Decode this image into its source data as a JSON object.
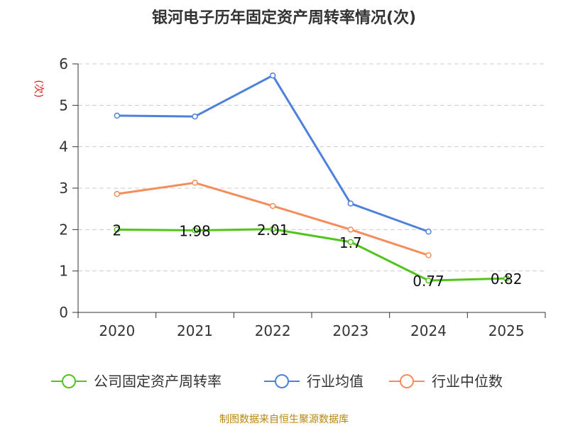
{
  "chart_data": {
    "type": "line",
    "title": "银河电子历年固定资产周转率情况(次)",
    "ylabel": "(次)",
    "xlabel": "",
    "categories": [
      "2020",
      "2021",
      "2022",
      "2023",
      "2024",
      "2025"
    ],
    "ylim": [
      0,
      6
    ],
    "yticks": [
      "0",
      "1",
      "2",
      "3",
      "4",
      "5",
      "6"
    ],
    "grid": true,
    "legend_position": "bottom",
    "series": [
      {
        "name": "公司固定资产周转率",
        "color": "#52c41a",
        "values": [
          2,
          1.98,
          2.01,
          1.7,
          0.77,
          0.82
        ],
        "labels": [
          "2",
          "1.98",
          "2.01",
          "1.7",
          "0.77",
          "0.82"
        ]
      },
      {
        "name": "行业均值",
        "color": "#4f81dc",
        "values": [
          4.75,
          4.73,
          5.72,
          2.63,
          1.95,
          null
        ]
      },
      {
        "name": "行业中位数",
        "color": "#f58d5b",
        "values": [
          2.86,
          3.13,
          2.57,
          2.0,
          1.38,
          null
        ]
      }
    ],
    "source": "制图数据来自恒生聚源数据库"
  }
}
